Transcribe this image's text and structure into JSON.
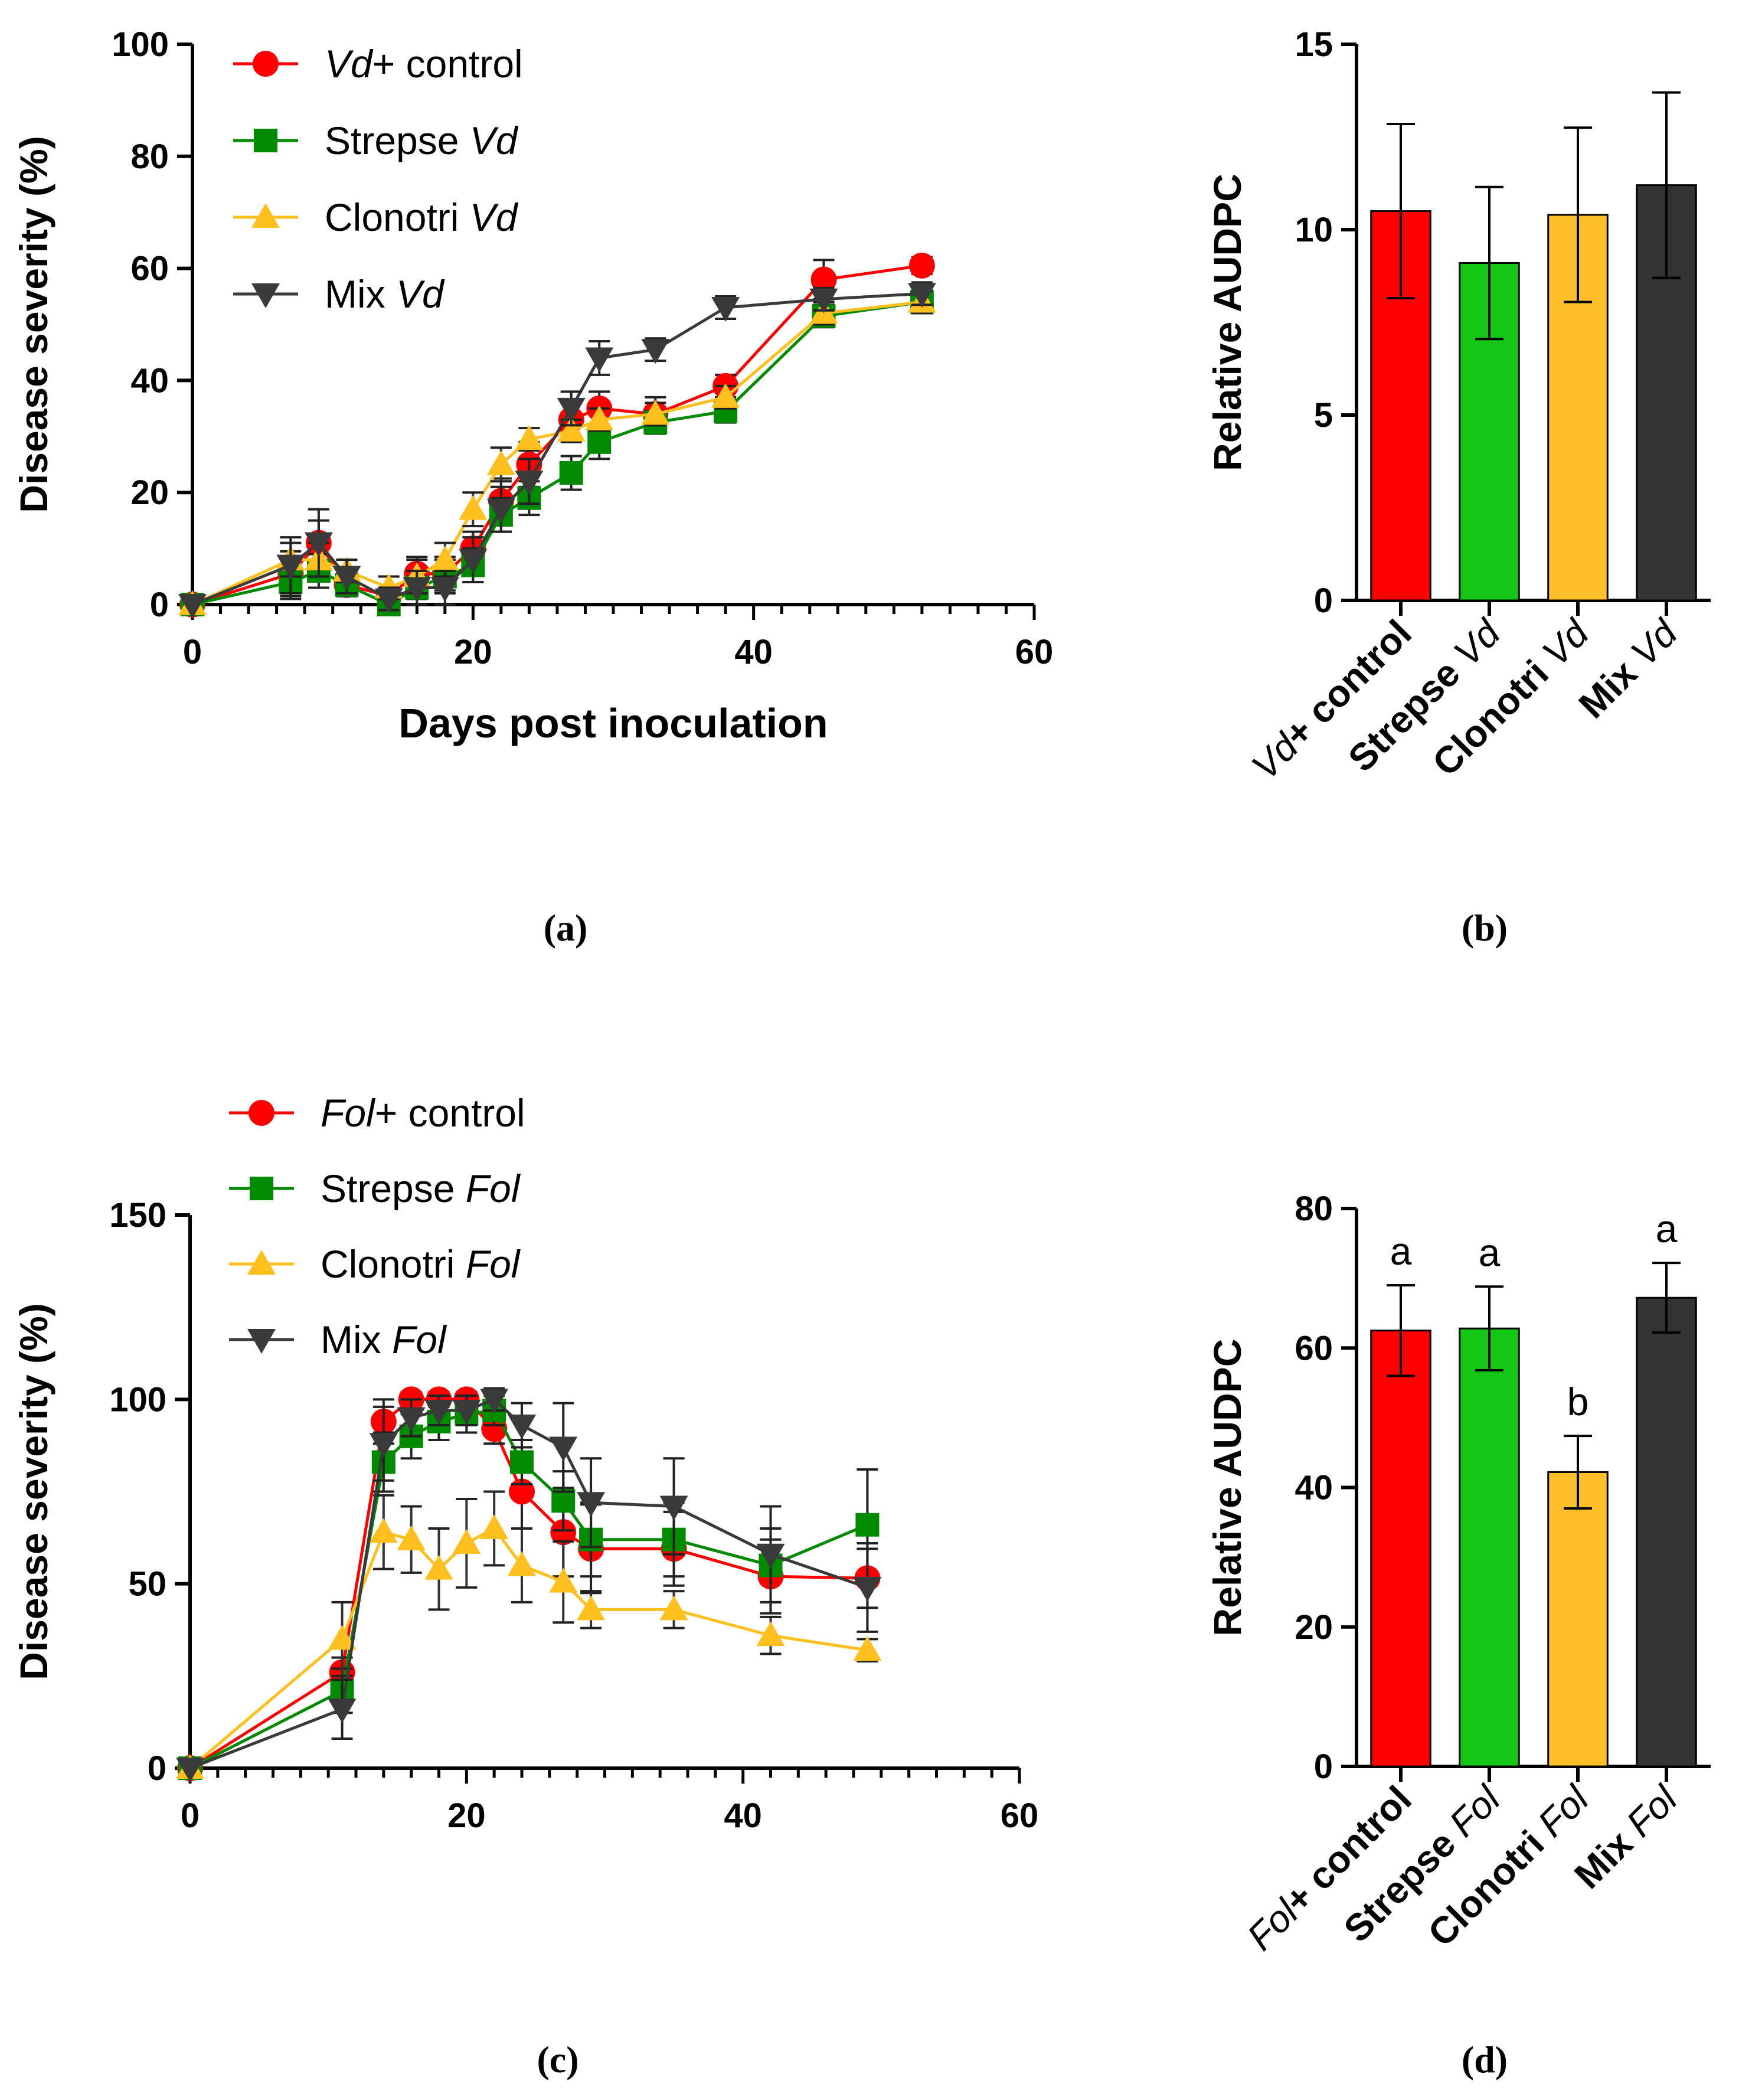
{
  "figure": {
    "panel_labels": [
      "(a)",
      "(b)",
      "(c)",
      "(d)"
    ]
  },
  "chart_data": [
    {
      "panel": "(a)",
      "type": "line",
      "title": "",
      "xlabel": "Days post inoculation",
      "ylabel": "Disease severity (%)",
      "xlim": [
        0,
        60
      ],
      "ylim": [
        0,
        100
      ],
      "xticks": [
        0,
        20,
        40,
        60
      ],
      "yticks": [
        0,
        20,
        40,
        60,
        80,
        100
      ],
      "x_minor_step": 2,
      "legend": "top-left",
      "series": [
        {
          "name": "Vd+ control",
          "name_italic": "Vd",
          "name_plain": "+ control",
          "italic_first": true,
          "color": "#ff0000",
          "marker": "circle",
          "x": [
            0,
            7,
            9,
            11,
            14,
            16,
            18,
            20,
            22,
            24,
            27,
            29,
            33,
            38,
            45,
            52
          ],
          "y": [
            0,
            5.5,
            11,
            3.5,
            1.5,
            5.5,
            5.5,
            10,
            18.5,
            25,
            33,
            35,
            34,
            39,
            58,
            60.5
          ],
          "err": [
            0,
            4,
            4,
            2,
            1.5,
            3,
            3,
            3,
            4,
            4,
            3,
            3,
            3,
            2,
            3.5,
            1.5
          ]
        },
        {
          "name": "Strepse Vd",
          "name_plain": "Strepse ",
          "name_italic": "Vd",
          "italic_first": false,
          "color": "#008a00",
          "marker": "square",
          "x": [
            0,
            7,
            9,
            11,
            14,
            16,
            18,
            20,
            22,
            24,
            27,
            29,
            33,
            38,
            45,
            52
          ],
          "y": [
            0,
            4,
            6,
            3.5,
            0,
            3,
            5,
            7,
            16,
            19,
            23.5,
            29,
            32.5,
            34.5,
            51.5,
            54
          ],
          "err": [
            0,
            3,
            3,
            2,
            1,
            2,
            3,
            3,
            3,
            3,
            3,
            3,
            2,
            2,
            2,
            2
          ]
        },
        {
          "name": "Clonotri Vd",
          "name_plain": "Clonotri ",
          "name_italic": "Vd",
          "italic_first": false,
          "color": "#ffbf1e",
          "marker": "triangle-up",
          "x": [
            0,
            7,
            9,
            11,
            14,
            16,
            18,
            20,
            22,
            24,
            27,
            29,
            33,
            38,
            45,
            52
          ],
          "y": [
            0,
            8,
            8,
            6,
            3,
            5,
            8,
            17,
            25,
            29.5,
            31,
            33,
            34,
            37,
            52,
            54
          ],
          "err": [
            0,
            3,
            3,
            2,
            2,
            3,
            3,
            3,
            3,
            2,
            2,
            2,
            2,
            2,
            2,
            2
          ]
        },
        {
          "name": "Mix Vd",
          "name_plain": "Mix ",
          "name_italic": "Vd",
          "italic_first": false,
          "color": "#3a3a3a",
          "marker": "triangle-down",
          "x": [
            0,
            7,
            9,
            11,
            14,
            16,
            18,
            20,
            22,
            24,
            27,
            29,
            33,
            38,
            45,
            52
          ],
          "y": [
            0,
            7,
            11,
            5,
            1,
            3,
            3,
            8,
            17,
            22,
            35,
            44,
            45.5,
            53,
            54.5,
            55.5
          ],
          "err": [
            0,
            5,
            6,
            3,
            2,
            3,
            3,
            4,
            4,
            4,
            3,
            3,
            2,
            2,
            2,
            2
          ]
        }
      ]
    },
    {
      "panel": "(b)",
      "type": "bar",
      "title": "",
      "xlabel": "",
      "ylabel": "Relative AUDPC",
      "ylim": [
        0,
        15
      ],
      "yticks": [
        0,
        5,
        10,
        15
      ],
      "categories": [
        "Vd+ control",
        "Strepse Vd",
        "Clonotri Vd",
        "Mix Vd"
      ],
      "category_parts": [
        {
          "italic": "Vd",
          "bold": "+ control",
          "italic_first": true
        },
        {
          "bold": "Strepse ",
          "italic": "Vd",
          "italic_first": false
        },
        {
          "bold": "Clonotri ",
          "italic": "Vd",
          "italic_first": false
        },
        {
          "bold": "Mix ",
          "italic": "Vd",
          "italic_first": false
        }
      ],
      "values": [
        10.5,
        9.1,
        10.4,
        11.2
      ],
      "err": [
        2.35,
        2.05,
        2.35,
        2.5
      ],
      "colors": [
        "#ff0000",
        "#14c714",
        "#ffbf2b",
        "#333333"
      ],
      "letters": []
    },
    {
      "panel": "(c)",
      "type": "line",
      "title": "",
      "xlabel": "",
      "ylabel": "Disease severity (%)",
      "xlim": [
        0,
        60
      ],
      "ylim": [
        0,
        150
      ],
      "xticks": [
        0,
        20,
        40,
        60
      ],
      "yticks": [
        0,
        50,
        100,
        150
      ],
      "x_minor_step": 2,
      "legend": "top-left",
      "series": [
        {
          "name": "Fol+ control",
          "name_italic": "Fol",
          "name_plain": "+ control",
          "italic_first": true,
          "color": "#ff0000",
          "marker": "circle",
          "x": [
            0,
            11,
            14,
            16,
            18,
            20,
            22,
            24,
            27,
            29,
            35,
            42,
            49
          ],
          "y": [
            0,
            26,
            94,
            100,
            100,
            100,
            92,
            75,
            64,
            59.5,
            59.5,
            52,
            51.5
          ],
          "err": [
            0,
            4,
            6,
            2,
            2,
            2,
            4,
            10,
            12,
            12,
            10,
            10,
            8
          ]
        },
        {
          "name": "Strepse Fol",
          "name_plain": "Strepse ",
          "name_italic": "Fol",
          "italic_first": false,
          "color": "#008a00",
          "marker": "square",
          "x": [
            0,
            11,
            14,
            16,
            18,
            20,
            22,
            24,
            27,
            29,
            35,
            42,
            49
          ],
          "y": [
            0,
            21,
            83,
            90,
            94,
            96,
            97,
            83,
            72.5,
            62,
            62,
            55,
            66
          ],
          "err": [
            0,
            6,
            8,
            6,
            5,
            5,
            4,
            6,
            8,
            10,
            10,
            10,
            15
          ]
        },
        {
          "name": "Clonotri Fol",
          "name_plain": "Clonotri ",
          "name_italic": "Fol",
          "italic_first": false,
          "color": "#ffbf1e",
          "marker": "triangle-up",
          "x": [
            0,
            11,
            14,
            16,
            18,
            20,
            22,
            24,
            27,
            29,
            35,
            42,
            49
          ],
          "y": [
            0,
            35,
            64,
            62,
            54,
            61,
            65,
            55,
            50.5,
            43,
            43,
            36,
            32
          ],
          "err": [
            0,
            10,
            10,
            9,
            11,
            12,
            10,
            10,
            11,
            5,
            5,
            5,
            3
          ]
        },
        {
          "name": "Mix Fol",
          "name_plain": "Mix ",
          "name_italic": "Fol",
          "italic_first": false,
          "color": "#3a3a3a",
          "marker": "triangle-down",
          "x": [
            0,
            11,
            14,
            16,
            18,
            20,
            22,
            24,
            27,
            29,
            35,
            42,
            49
          ],
          "y": [
            0,
            16,
            88,
            95,
            97,
            97,
            100,
            93,
            87,
            72,
            71,
            58,
            49
          ],
          "err": [
            0,
            8,
            10,
            5,
            4,
            4,
            3,
            6,
            12,
            12,
            13,
            13,
            12
          ]
        }
      ]
    },
    {
      "panel": "(d)",
      "type": "bar",
      "title": "",
      "xlabel": "",
      "ylabel": "Relative AUDPC",
      "ylim": [
        0,
        80
      ],
      "yticks": [
        0,
        20,
        40,
        60,
        80
      ],
      "categories": [
        "Fol+ control",
        "Strepse Fol",
        "Clonotri Fol",
        "Mix Fol"
      ],
      "category_parts": [
        {
          "italic": "Fol",
          "bold": "+ control",
          "italic_first": true
        },
        {
          "bold": "Strepse ",
          "italic": "Fol",
          "italic_first": false
        },
        {
          "bold": "Clonotri ",
          "italic": "Fol",
          "italic_first": false
        },
        {
          "bold": "Mix ",
          "italic": "Fol",
          "italic_first": false
        }
      ],
      "values": [
        62.5,
        62.8,
        42.2,
        67.2
      ],
      "err": [
        6.5,
        6,
        5.2,
        5
      ],
      "colors": [
        "#ff0000",
        "#14c714",
        "#ffbf2b",
        "#333333"
      ],
      "letters": [
        "a",
        "a",
        "b",
        "a"
      ]
    }
  ]
}
